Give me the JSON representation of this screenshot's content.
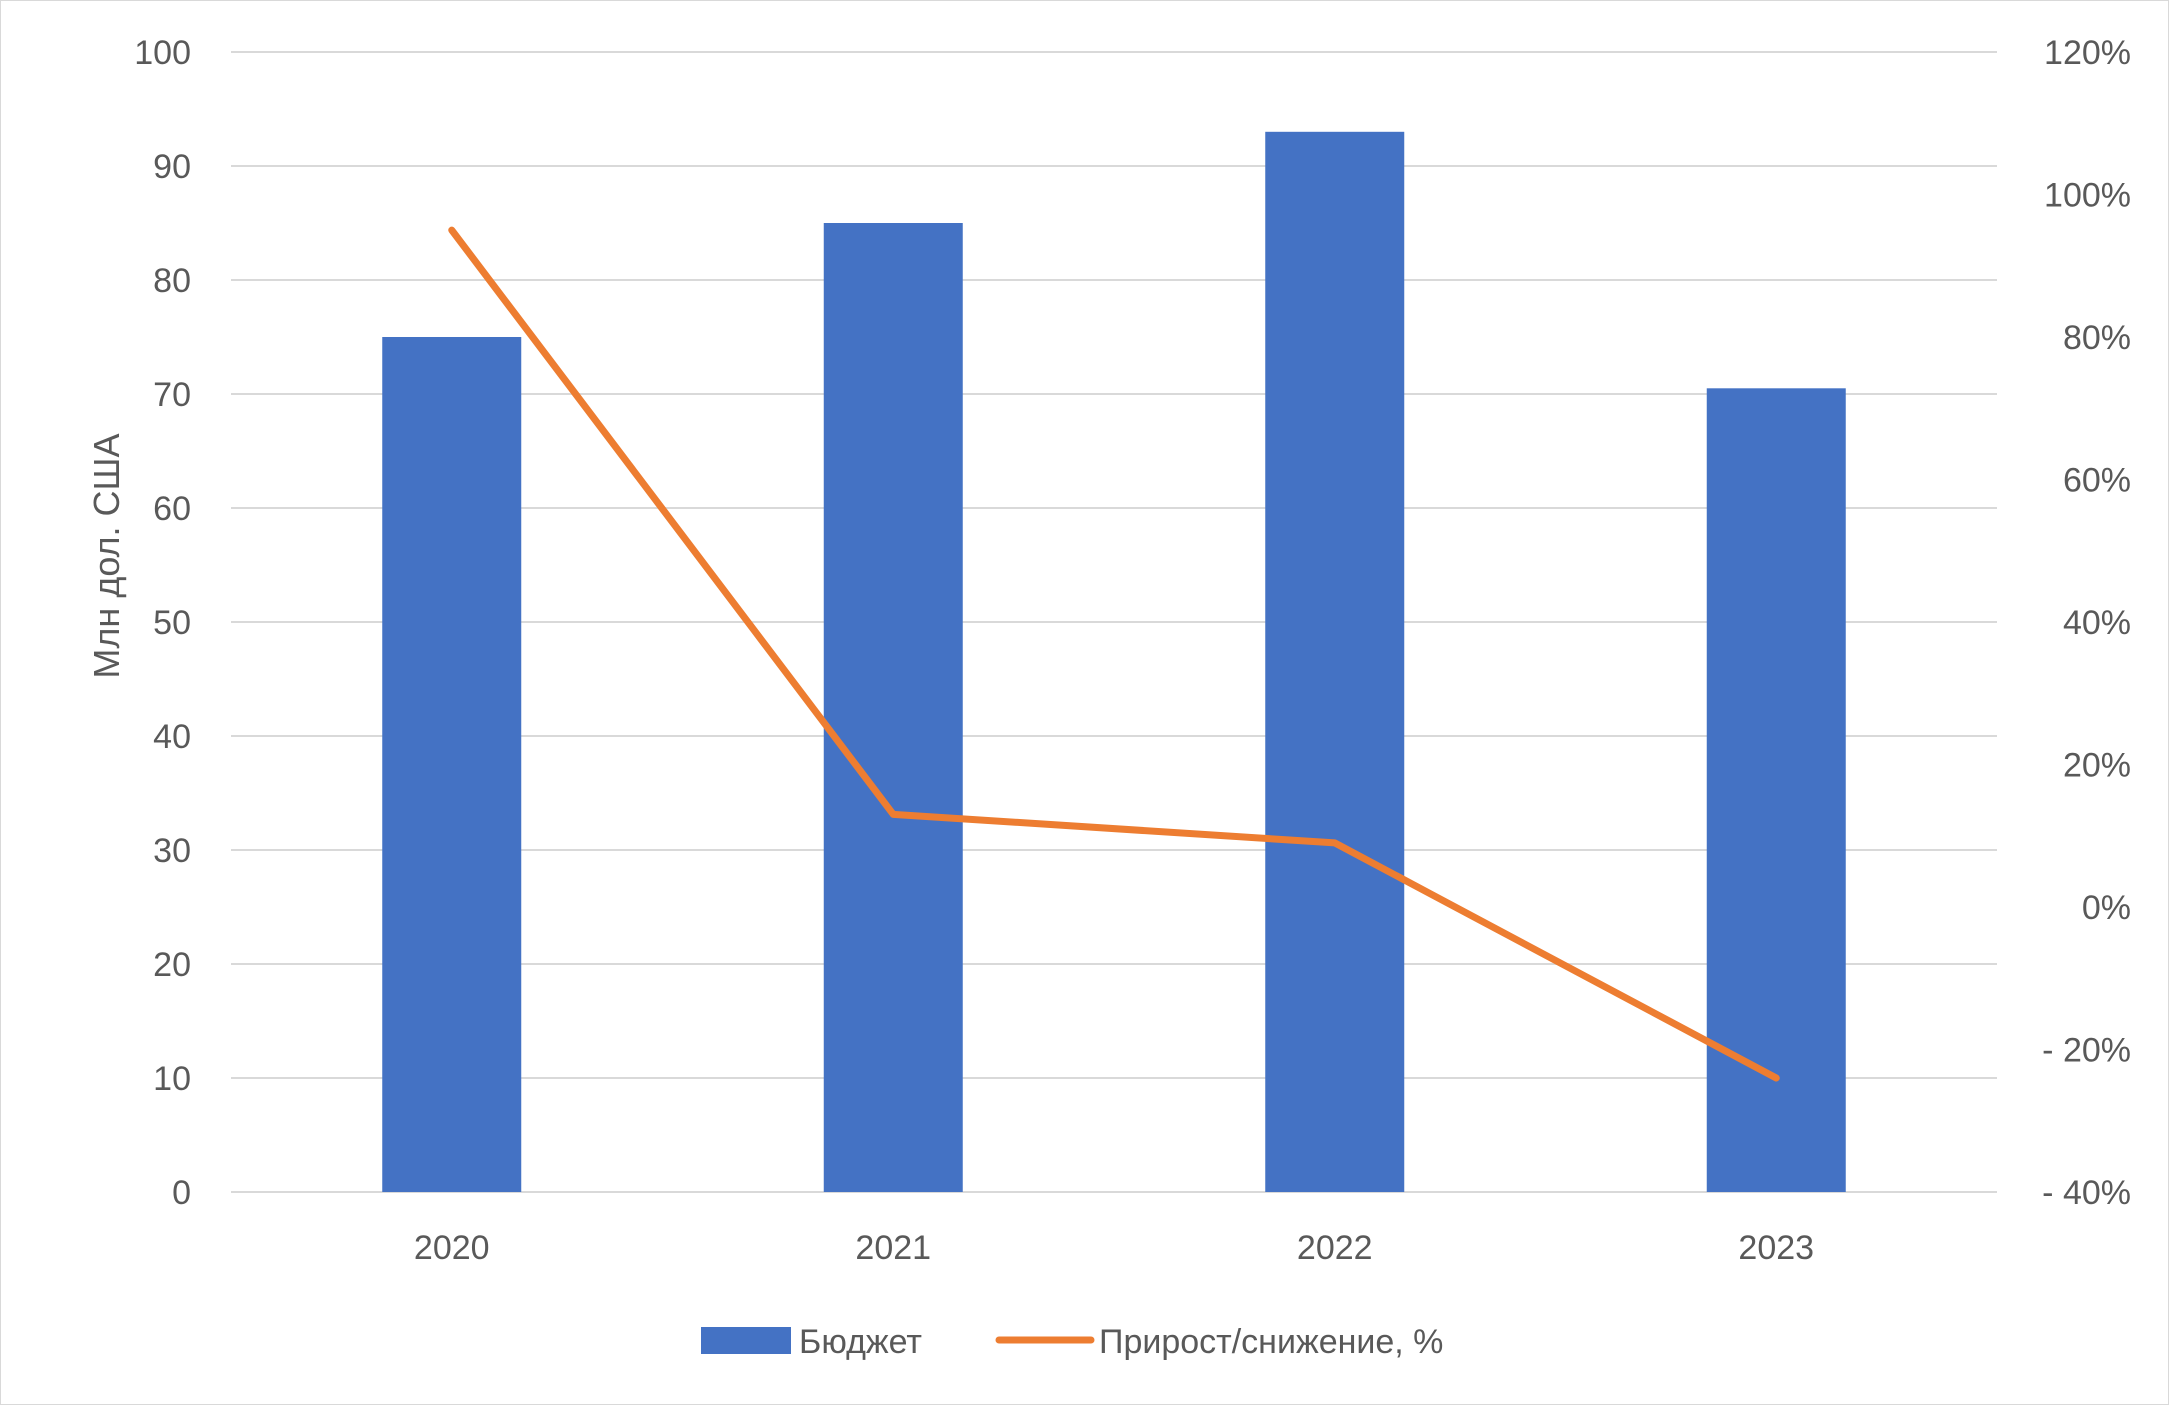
{
  "chart_data": {
    "type": "bar",
    "categories": [
      "2020",
      "2021",
      "2022",
      "2023"
    ],
    "series": [
      {
        "name": "Бюджет",
        "type": "bar",
        "axis": "left",
        "values": [
          75,
          85,
          93,
          70.5
        ]
      },
      {
        "name": "Прирост/снижение, %",
        "type": "line",
        "axis": "right",
        "values": [
          95,
          13,
          9,
          -24
        ]
      }
    ],
    "ylabel": "Млн дол. США",
    "ylim": [
      0,
      100
    ],
    "yticks": [
      "0",
      "10",
      "20",
      "30",
      "40",
      "50",
      "60",
      "70",
      "80",
      "90",
      "100"
    ],
    "y2lim": [
      -40,
      120
    ],
    "y2ticks": [
      "- 40%",
      "- 20%",
      "0%",
      "20%",
      "40%",
      "60%",
      "80%",
      "100%",
      "120%"
    ],
    "grid": true,
    "legend_position": "bottom",
    "colors": {
      "bar": "#4472c4",
      "line": "#ed7d31",
      "grid": "#d9d9d9",
      "text": "#595959"
    }
  }
}
